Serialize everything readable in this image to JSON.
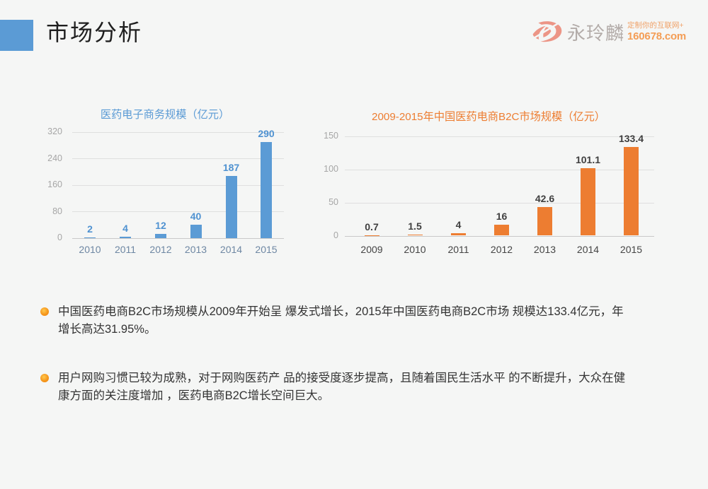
{
  "page": {
    "background": "#f5f6f5"
  },
  "header": {
    "title": "市场分析",
    "accent_color": "#5b9bd5"
  },
  "logo": {
    "brand": "永玲麟",
    "tagline": "定制你的互联网+",
    "domain": "160678.com",
    "mark_color": "#ec9586",
    "brand_color": "#b3aca9",
    "tagline_color": "#f0a269",
    "domain_color": "#f49d55"
  },
  "chart_data": [
    {
      "type": "bar",
      "title": "医药电子商务规模（亿元）",
      "categories": [
        "2010",
        "2011",
        "2012",
        "2013",
        "2014",
        "2015"
      ],
      "values": [
        2,
        4,
        12,
        40,
        187,
        290
      ],
      "ylim": [
        0,
        320
      ],
      "yticks": [
        0,
        80,
        160,
        240,
        320
      ],
      "grid": true,
      "legend": "none",
      "bar_color": "#5b9bd5",
      "title_color": "#5b9bd5",
      "value_label_color": "#4f92d1",
      "xlabel_color": "#6e87a3",
      "ytick_color": "#a6a6a6"
    },
    {
      "type": "bar",
      "title": "2009-2015年中国医药电商B2C市场规模（亿元）",
      "categories": [
        "2009",
        "2010",
        "2011",
        "2012",
        "2013",
        "2014",
        "2015"
      ],
      "values": [
        0.7,
        1.5,
        4,
        16,
        42.6,
        101.1,
        133.4
      ],
      "ylim": [
        0,
        150
      ],
      "yticks": [
        0,
        50,
        100,
        150
      ],
      "grid": true,
      "legend": "none",
      "bar_color": "#ed7d31",
      "title_color": "#ed7d31",
      "value_label_color": "#3f3f3f",
      "xlabel_color": "#454545",
      "ytick_color": "#a6a6a6"
    }
  ],
  "bullets": [
    {
      "lines": [
        "中国医药电商B2C市场规模从2009年开始呈 爆发式增长，2015年中国医药电商B2C市场 规模达133.4亿元，年",
        "增长高达31.95%。"
      ]
    },
    {
      "lines": [
        "用户网购习惯已较为成熟，对于网购医药产 品的接受度逐步提高，且随着国民生活水平 的不断提升，大众在健",
        "康方面的关注度增加 ，医药电商B2C增长空间巨大。"
      ]
    }
  ],
  "bullet_dot_color": "#f59a23"
}
